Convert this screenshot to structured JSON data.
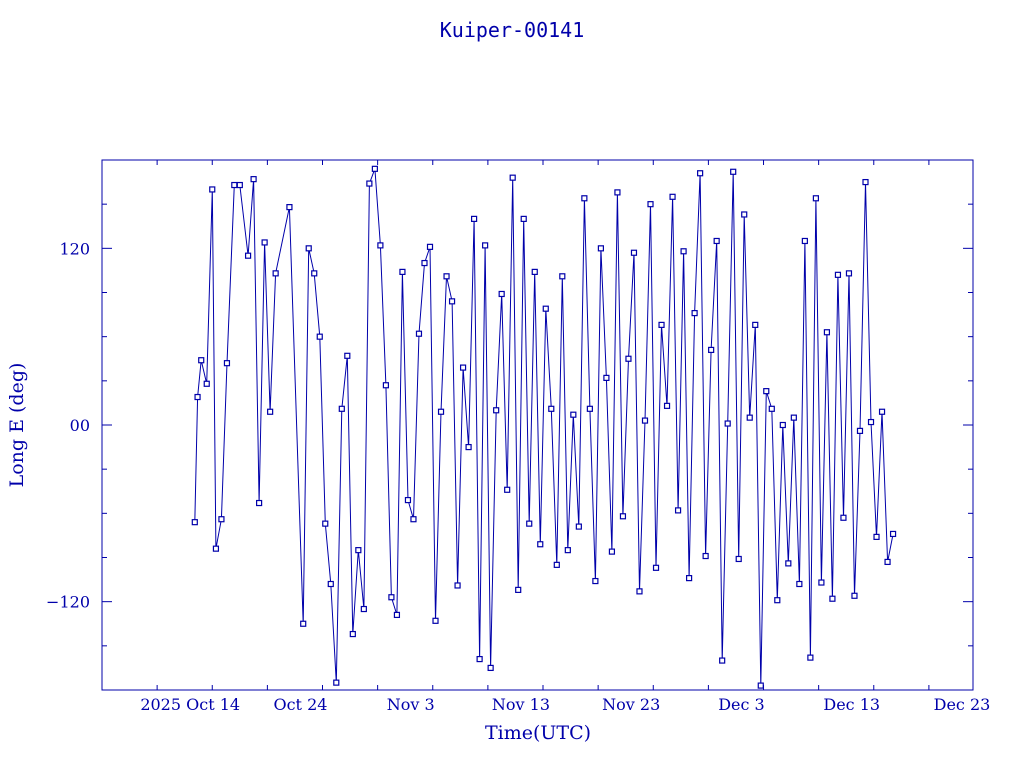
{
  "chart_data": {
    "type": "scatter",
    "title": "Kuiper-00141",
    "xlabel": "Time(UTC)",
    "ylabel": "Long E (deg)",
    "x_unit": "date",
    "xlim": [
      "2025-10-06",
      "2025-12-24"
    ],
    "ylim": [
      -180,
      180
    ],
    "x_ticks": [
      {
        "date": "2025-10-14",
        "label": "2025 Oct 14"
      },
      {
        "date": "2025-10-24",
        "label": "Oct 24"
      },
      {
        "date": "2025-11-03",
        "label": "Nov  3"
      },
      {
        "date": "2025-11-13",
        "label": "Nov 13"
      },
      {
        "date": "2025-11-23",
        "label": "Nov 23"
      },
      {
        "date": "2025-12-03",
        "label": "Dec  3"
      },
      {
        "date": "2025-12-13",
        "label": "Dec 13"
      },
      {
        "date": "2025-12-23",
        "label": "Dec 23"
      }
    ],
    "y_ticks": [
      {
        "value": 120,
        "label": "120"
      },
      {
        "value": 0,
        "label": "00"
      },
      {
        "value": -120,
        "label": "−120"
      }
    ],
    "grid": false,
    "color": "#0000aa",
    "marker": "square",
    "connect_points": true,
    "series": [
      {
        "points": [
          [
            "2025-10-14T10:00",
            -66
          ],
          [
            "2025-10-14T16:00",
            19
          ],
          [
            "2025-10-15T00:00",
            44
          ],
          [
            "2025-10-15T12:00",
            28
          ],
          [
            "2025-10-16T00:00",
            160
          ],
          [
            "2025-10-16T08:00",
            -84
          ],
          [
            "2025-10-16T20:00",
            -64
          ],
          [
            "2025-10-17T08:00",
            42
          ],
          [
            "2025-10-18T00:00",
            163
          ],
          [
            "2025-10-18T12:00",
            163
          ],
          [
            "2025-10-19T06:00",
            115
          ],
          [
            "2025-10-19T18:00",
            167
          ],
          [
            "2025-10-20T06:00",
            -53
          ],
          [
            "2025-10-20T18:00",
            124
          ],
          [
            "2025-10-21T06:00",
            9
          ],
          [
            "2025-10-21T18:00",
            103
          ],
          [
            "2025-10-23T00:00",
            148
          ],
          [
            "2025-10-24T06:00",
            -135
          ],
          [
            "2025-10-24T18:00",
            120
          ],
          [
            "2025-10-25T06:00",
            103
          ],
          [
            "2025-10-25T18:00",
            60
          ],
          [
            "2025-10-26T06:00",
            -67
          ],
          [
            "2025-10-26T18:00",
            -108
          ],
          [
            "2025-10-27T06:00",
            -175
          ],
          [
            "2025-10-27T18:00",
            11
          ],
          [
            "2025-10-28T06:00",
            47
          ],
          [
            "2025-10-28T18:00",
            -142
          ],
          [
            "2025-10-29T06:00",
            -85
          ],
          [
            "2025-10-29T18:00",
            -125
          ],
          [
            "2025-10-30T06:00",
            164
          ],
          [
            "2025-10-30T18:00",
            174
          ],
          [
            "2025-10-31T06:00",
            122
          ],
          [
            "2025-10-31T18:00",
            27
          ],
          [
            "2025-11-01T06:00",
            -117
          ],
          [
            "2025-11-01T18:00",
            -129
          ],
          [
            "2025-11-02T06:00",
            104
          ],
          [
            "2025-11-02T18:00",
            -51
          ],
          [
            "2025-11-03T06:00",
            -64
          ],
          [
            "2025-11-03T18:00",
            62
          ],
          [
            "2025-11-04T06:00",
            110
          ],
          [
            "2025-11-04T18:00",
            121
          ],
          [
            "2025-11-05T06:00",
            -133
          ],
          [
            "2025-11-05T18:00",
            9
          ],
          [
            "2025-11-06T06:00",
            101
          ],
          [
            "2025-11-06T18:00",
            84
          ],
          [
            "2025-11-07T06:00",
            -109
          ],
          [
            "2025-11-07T18:00",
            39
          ],
          [
            "2025-11-08T06:00",
            -15
          ],
          [
            "2025-11-08T18:00",
            140
          ],
          [
            "2025-11-09T06:00",
            -159
          ],
          [
            "2025-11-09T18:00",
            122
          ],
          [
            "2025-11-10T06:00",
            -165
          ],
          [
            "2025-11-10T18:00",
            10
          ],
          [
            "2025-11-11T06:00",
            89
          ],
          [
            "2025-11-11T18:00",
            -44
          ],
          [
            "2025-11-12T06:00",
            168
          ],
          [
            "2025-11-12T18:00",
            -112
          ],
          [
            "2025-11-13T06:00",
            140
          ],
          [
            "2025-11-13T18:00",
            -67
          ],
          [
            "2025-11-14T06:00",
            104
          ],
          [
            "2025-11-14T18:00",
            -81
          ],
          [
            "2025-11-15T06:00",
            79
          ],
          [
            "2025-11-15T18:00",
            11
          ],
          [
            "2025-11-16T06:00",
            -95
          ],
          [
            "2025-11-16T18:00",
            101
          ],
          [
            "2025-11-17T06:00",
            -85
          ],
          [
            "2025-11-17T18:00",
            7
          ],
          [
            "2025-11-18T06:00",
            -69
          ],
          [
            "2025-11-18T18:00",
            154
          ],
          [
            "2025-11-19T06:00",
            11
          ],
          [
            "2025-11-19T18:00",
            -106
          ],
          [
            "2025-11-20T06:00",
            120
          ],
          [
            "2025-11-20T18:00",
            32
          ],
          [
            "2025-11-21T06:00",
            -86
          ],
          [
            "2025-11-21T18:00",
            158
          ],
          [
            "2025-11-22T06:00",
            -62
          ],
          [
            "2025-11-22T18:00",
            45
          ],
          [
            "2025-11-23T06:00",
            117
          ],
          [
            "2025-11-23T18:00",
            -113
          ],
          [
            "2025-11-24T06:00",
            3
          ],
          [
            "2025-11-24T18:00",
            150
          ],
          [
            "2025-11-25T06:00",
            -97
          ],
          [
            "2025-11-25T18:00",
            68
          ],
          [
            "2025-11-26T06:00",
            13
          ],
          [
            "2025-11-26T18:00",
            155
          ],
          [
            "2025-11-27T06:00",
            -58
          ],
          [
            "2025-11-27T18:00",
            118
          ],
          [
            "2025-11-28T06:00",
            -104
          ],
          [
            "2025-11-28T18:00",
            76
          ],
          [
            "2025-11-29T06:00",
            171
          ],
          [
            "2025-11-29T18:00",
            -89
          ],
          [
            "2025-11-30T06:00",
            51
          ],
          [
            "2025-11-30T18:00",
            125
          ],
          [
            "2025-12-01T06:00",
            -160
          ],
          [
            "2025-12-01T18:00",
            1
          ],
          [
            "2025-12-02T06:00",
            172
          ],
          [
            "2025-12-02T18:00",
            -91
          ],
          [
            "2025-12-03T06:00",
            143
          ],
          [
            "2025-12-03T18:00",
            5
          ],
          [
            "2025-12-04T06:00",
            68
          ],
          [
            "2025-12-04T18:00",
            -177
          ],
          [
            "2025-12-05T06:00",
            23
          ],
          [
            "2025-12-05T18:00",
            11
          ],
          [
            "2025-12-06T06:00",
            -119
          ],
          [
            "2025-12-06T18:00",
            0
          ],
          [
            "2025-12-07T06:00",
            -94
          ],
          [
            "2025-12-07T18:00",
            5
          ],
          [
            "2025-12-08T06:00",
            -108
          ],
          [
            "2025-12-08T18:00",
            125
          ],
          [
            "2025-12-09T06:00",
            -158
          ],
          [
            "2025-12-09T18:00",
            154
          ],
          [
            "2025-12-10T06:00",
            -107
          ],
          [
            "2025-12-10T18:00",
            63
          ],
          [
            "2025-12-11T06:00",
            -118
          ],
          [
            "2025-12-11T18:00",
            102
          ],
          [
            "2025-12-12T06:00",
            -63
          ],
          [
            "2025-12-12T18:00",
            103
          ],
          [
            "2025-12-13T06:00",
            -116
          ],
          [
            "2025-12-13T18:00",
            -4
          ],
          [
            "2025-12-14T06:00",
            165
          ],
          [
            "2025-12-14T18:00",
            2
          ],
          [
            "2025-12-15T06:00",
            -76
          ],
          [
            "2025-12-15T18:00",
            9
          ],
          [
            "2025-12-16T06:00",
            -93
          ],
          [
            "2025-12-16T18:00",
            -74
          ]
        ]
      }
    ]
  }
}
